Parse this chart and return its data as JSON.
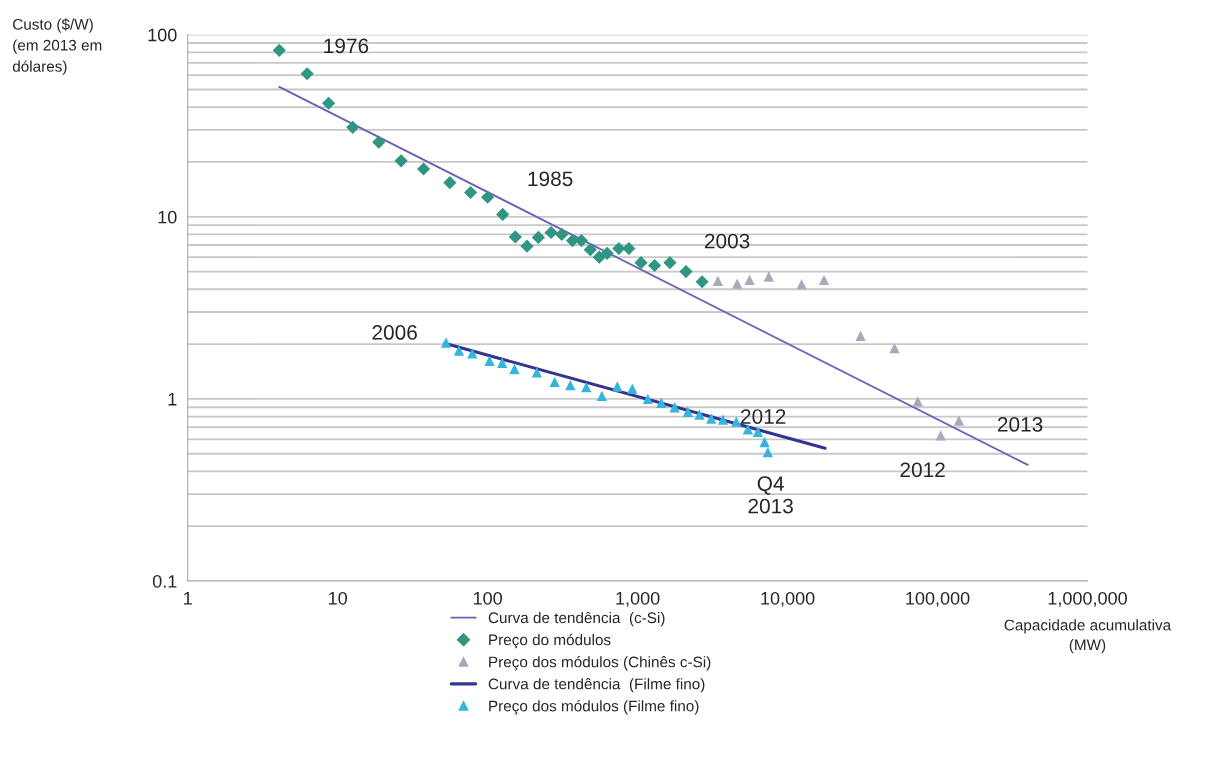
{
  "chart_data": {
    "type": "scatter",
    "ylabel": "Custo ($/W)\n(em 2013 em\ndólares)",
    "xlabel": "Capacidade acumulativa\n(MW)",
    "log": "xy",
    "xlim": [
      1,
      1000000
    ],
    "ylim": [
      0.1,
      100
    ],
    "xticks": [
      1,
      10,
      100,
      {
        "value": 1000,
        "label": "1,000"
      },
      {
        "value": 10000,
        "label": "10,000"
      },
      {
        "value": 100000,
        "label": "100,000"
      },
      {
        "value": 1000000,
        "label": "1,000,000"
      }
    ],
    "yticks": [
      0.1,
      1,
      10,
      100
    ],
    "grid": "y",
    "legend": "bottom",
    "series": [
      {
        "name": "Curva de tendência  (c-Si)",
        "type": "line",
        "color": "#6a62b8",
        "line_style": "solid",
        "marker": "none",
        "x": [
          4.08,
          400000
        ],
        "values": [
          51.7,
          0.434
        ]
      },
      {
        "name": "Preço do módulos",
        "color": "#2f9683",
        "marker": "diamond",
        "x": [
          4.08,
          6.26,
          8.7,
          12.6,
          18.8,
          26.5,
          37.4,
          56,
          77,
          100,
          126,
          153,
          183,
          218,
          265,
          312,
          368,
          422,
          484,
          555,
          626,
          750,
          875,
          1054,
          1298,
          1643,
          2103,
          2692
        ],
        "values": [
          82,
          61,
          42,
          31,
          25.7,
          20.3,
          18.3,
          15.4,
          13.6,
          12.8,
          10.3,
          7.75,
          6.9,
          7.7,
          8.2,
          8.0,
          7.4,
          7.4,
          6.6,
          6.0,
          6.3,
          6.7,
          6.7,
          5.6,
          5.4,
          5.6,
          5.0,
          4.4
        ]
      },
      {
        "name": "Preço dos módulos (Chinês c-Si)",
        "color": "#a9a9b9",
        "marker": "triangle",
        "x": [
          3430,
          4620,
          5580,
          7500,
          12400,
          17500,
          30700,
          51700,
          73900,
          105000,
          139000
        ],
        "values": [
          4.45,
          4.3,
          4.5,
          4.7,
          4.27,
          4.5,
          2.22,
          1.9,
          0.97,
          0.63,
          0.76
        ]
      },
      {
        "name": "Curva de tendência  (Filme fino)",
        "type": "line",
        "color": "#35358f",
        "line_style": "solid",
        "marker": "none",
        "x": [
          51.7,
          17800
        ],
        "values": [
          2.02,
          0.536
        ]
      },
      {
        "name": "Preço dos módulos (Filme fino)",
        "color": "#35b5dd",
        "marker": "triangle",
        "x": [
          52.8,
          64.4,
          79,
          103,
          125,
          151,
          213,
          280,
          356,
          455,
          578,
          732,
          922,
          1171,
          1439,
          1766,
          2165,
          2590,
          3100,
          3710,
          4550,
          5440,
          6340,
          7030,
          7390
        ],
        "values": [
          2.04,
          1.84,
          1.78,
          1.62,
          1.58,
          1.46,
          1.4,
          1.24,
          1.19,
          1.16,
          1.04,
          1.17,
          1.14,
          1.0,
          0.95,
          0.9,
          0.85,
          0.82,
          0.78,
          0.77,
          0.75,
          0.68,
          0.66,
          0.58,
          0.51
        ]
      }
    ],
    "annotations": [
      {
        "text": "1976",
        "x": 4.08,
        "y": 82
      },
      {
        "text": "1985",
        "x": 100,
        "y": 12.8
      },
      {
        "text": "2003",
        "x": 2692,
        "y": 4.4
      },
      {
        "text": "2006",
        "x": 52.8,
        "y": 2.04
      },
      {
        "text": "2012",
        "x": 5440,
        "y": 0.68
      },
      {
        "text": "Q4\n2013",
        "x": 7390,
        "y": 0.51
      },
      {
        "text": "2012",
        "x": 105000,
        "y": 0.63
      },
      {
        "text": "2013",
        "x": 139000,
        "y": 0.76
      }
    ]
  }
}
